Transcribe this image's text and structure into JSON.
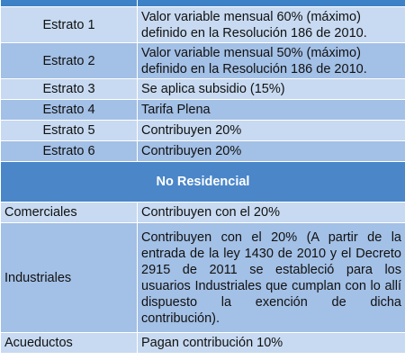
{
  "residencial": [
    {
      "estrato": "Estrato 1",
      "valor": "Valor variable mensual 60% (máximo) definido en la Resolución 186 de 2010."
    },
    {
      "estrato": "Estrato 2",
      "valor": "Valor variable mensual 50% (máximo) definido en la Resolución 186 de 2010."
    },
    {
      "estrato": "Estrato 3",
      "valor": "Se aplica subsidio (15%)"
    },
    {
      "estrato": "Estrato 4",
      "valor": "Tarifa Plena"
    },
    {
      "estrato": "Estrato 5",
      "valor": "Contribuyen  20%"
    },
    {
      "estrato": "Estrato 6",
      "valor": "Contribuyen  20%"
    }
  ],
  "no_residencial_header": "No Residencial",
  "no_residencial": [
    {
      "tipo": "Comerciales",
      "valor": "Contribuyen con el 20%"
    },
    {
      "tipo": "Industriales",
      "valor": "Contribuyen con el 20% (A partir de la entrada de la ley 1430 de 2010 y el Decreto 2915 de 2011 se estableció para los usuarios Industriales que cumplan con lo allí dispuesto la exención de dicha contribución)."
    },
    {
      "tipo": "Acueductos",
      "valor": "Pagan contribución 10%"
    }
  ]
}
